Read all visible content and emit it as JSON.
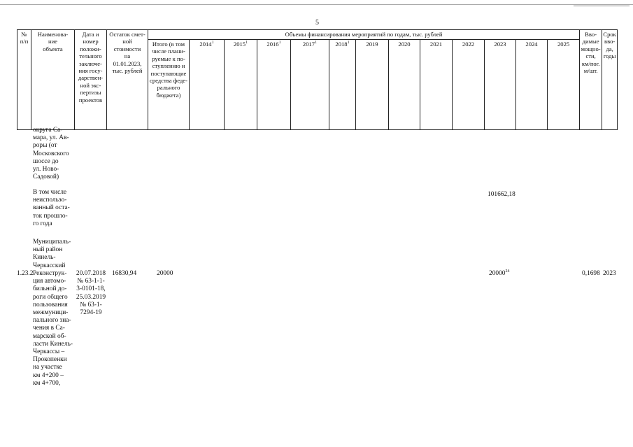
{
  "page_number": "5",
  "header": {
    "num": "№\nп/п",
    "name": "Наименова-\nние\nобъекта",
    "date": "Дата и\nномер\nположи-\nтельного\nзаключе-\nния госу-\nдарствен-\nной экс-\nпертизы\nпроектов",
    "remainder": "Остаток смет-\nной\nстоимости\nна\n01.01.2023,\nтыс. рублей",
    "funding_group": "Объемы финансирования мероприятий по годам, тыс. рублей",
    "total": "Итого (в том\nчисле плани-\nруемые к по-\nступлению и\nпоступающие\nсредства феде-\nрального\nбюджета)",
    "years": [
      {
        "label": "2014",
        "sup": "1"
      },
      {
        "label": "2015",
        "sup": "1"
      },
      {
        "label": "2016",
        "sup": "1"
      },
      {
        "label": "2017",
        "sup": "1"
      },
      {
        "label": "2018",
        "sup": "1"
      },
      {
        "label": "2019",
        "sup": ""
      },
      {
        "label": "2020",
        "sup": ""
      },
      {
        "label": "2021",
        "sup": ""
      },
      {
        "label": "2022",
        "sup": ""
      },
      {
        "label": "2023",
        "sup": ""
      },
      {
        "label": "2024",
        "sup": ""
      },
      {
        "label": "2025",
        "sup": ""
      }
    ],
    "capacity": "Вво-\nдимые\nмощно-\nсти,\nкм/пог.\nм/шт.",
    "term": "Срок\nвво-\nда,\nгоды"
  },
  "body": {
    "cont_name": "округа Са-\nмара, ул. Ав-\nроры (от\nМосковского\nшоссе до\nул. Ново-\nСадовой)",
    "unused_label": "В том числе\nнеиспользо-\nванный оста-\nток прошло-\nго года",
    "unused_2023": "101662,18",
    "district": "Муниципаль-\nный район\nКинель-\nЧеркасский",
    "row": {
      "num": "1.23.2.",
      "name": "Реконструк-\nция автомо-\nбильной до-\nроги общего\nпользования\nмежмуници-\nпального зна-\nчения в Са-\nмарской об-\nласти Кинель-\nЧеркассы –\nПрокопенки\nна участке\nкм 4+200 –\nкм 4+700,",
      "date": "20.07.2018\n№ 63-1-1-\n3-0101-18,\n25.03.2019\n№ 63-1-\n7294-19",
      "remainder": "16830,94",
      "total": "20000",
      "y2023": "20000",
      "y2023_sup": "24",
      "capacity": "0,1698",
      "term": "2023"
    }
  }
}
